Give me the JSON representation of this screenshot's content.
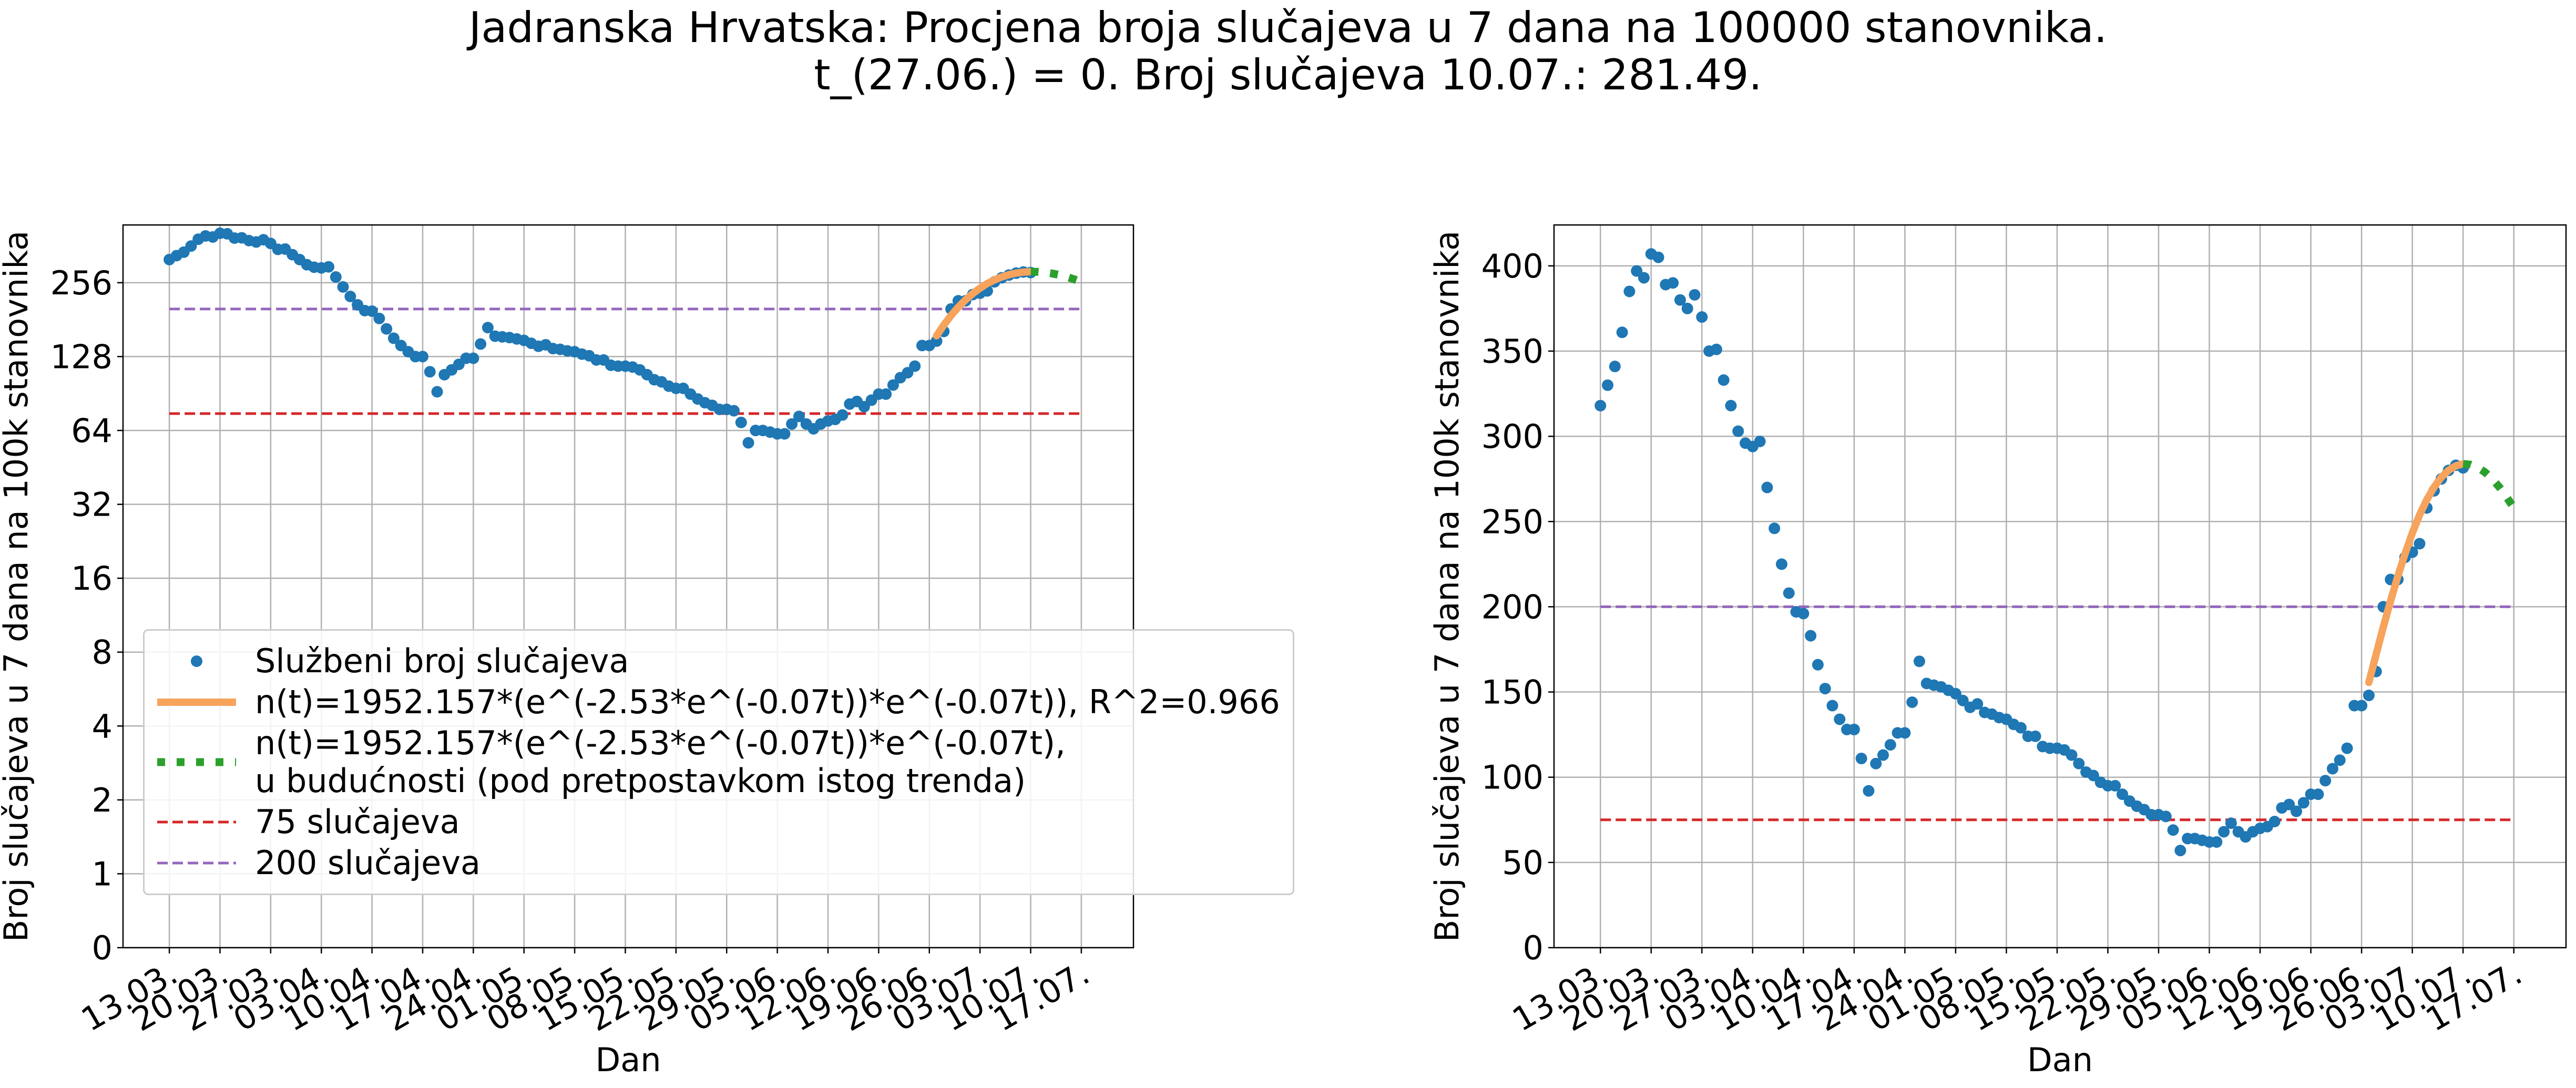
{
  "title": "Jadranska Hrvatska: Procjena broja slučajeva u 7 dana na 100000 stanovnika.\nt_(27.06.) = 0. Broj slučajeva 10.07.: 281.49.",
  "chart_data": [
    {
      "type": "line",
      "xlabel": "Dan",
      "ylabel": "Broj slučajeva u 7 dana na 100k stanovnika",
      "yscale": "symlog",
      "grid": true,
      "legend": "lower left",
      "ylim": [
        0,
        440
      ],
      "yticks": [
        0,
        1,
        2,
        4,
        8,
        16,
        32,
        64,
        128,
        256
      ],
      "categories": [
        "13.03.",
        null,
        null,
        null,
        null,
        null,
        null,
        "20.03.",
        null,
        null,
        null,
        null,
        null,
        null,
        "27.03.",
        null,
        null,
        null,
        null,
        null,
        null,
        "03.04.",
        null,
        null,
        null,
        null,
        null,
        null,
        "10.04.",
        null,
        null,
        null,
        null,
        null,
        null,
        "17.04.",
        null,
        null,
        null,
        null,
        null,
        null,
        "24.04.",
        null,
        null,
        null,
        null,
        null,
        null,
        "01.05.",
        null,
        null,
        null,
        null,
        null,
        null,
        "08.05.",
        null,
        null,
        null,
        null,
        null,
        null,
        "15.05.",
        null,
        null,
        null,
        null,
        null,
        null,
        "22.05.",
        null,
        null,
        null,
        null,
        null,
        null,
        "29.05.",
        null,
        null,
        null,
        null,
        null,
        null,
        "05.06.",
        null,
        null,
        null,
        null,
        null,
        null,
        "12.06.",
        null,
        null,
        null,
        null,
        null,
        null,
        "19.06.",
        null,
        null,
        null,
        null,
        null,
        null,
        "26.06.",
        null,
        null,
        null,
        null,
        null,
        null,
        "03.07.",
        null,
        null,
        null,
        null,
        null,
        null,
        "10.07.",
        null,
        null,
        null,
        null,
        null,
        null,
        "17.07."
      ],
      "series": [
        {
          "name": "Službeni broj slučajeva",
          "color": "#1f77b4",
          "style": "markers",
          "values": [
            318,
            330,
            341,
            361,
            385,
            397,
            393,
            407,
            405,
            389,
            390,
            380,
            375,
            383,
            370,
            350,
            351,
            333,
            318,
            303,
            296,
            294,
            297,
            270,
            246,
            225,
            208,
            197,
            196,
            183,
            166,
            152,
            142,
            134,
            128,
            128,
            111,
            92,
            108,
            113,
            119,
            126,
            126,
            144,
            168,
            155,
            154,
            153,
            151,
            149,
            145,
            141,
            143,
            138,
            137,
            135,
            134,
            131,
            129,
            124,
            124,
            118,
            117,
            117,
            116,
            113,
            108,
            103,
            101,
            97,
            95,
            95,
            90,
            86,
            83,
            81,
            78,
            78,
            77,
            69,
            57,
            64,
            64,
            63,
            62,
            62,
            68,
            73,
            68,
            65,
            68,
            70,
            71,
            74,
            82,
            84,
            80,
            85,
            90,
            90,
            98,
            105,
            110,
            117,
            142,
            142,
            148,
            162,
            200,
            216,
            216,
            229,
            232,
            237,
            258,
            268,
            275,
            280,
            283,
            281.49,
            null,
            null,
            null,
            null,
            null,
            null,
            null
          ]
        },
        {
          "name": "n(t)=1952.157*(e^(-2.53*e^(-0.07t))*e^(-0.07t)), R^2=0.966",
          "color": "#f7a35c",
          "style": "solid",
          "values": [
            null,
            null,
            null,
            null,
            null,
            null,
            null,
            null,
            null,
            null,
            null,
            null,
            null,
            null,
            null,
            null,
            null,
            null,
            null,
            null,
            null,
            null,
            null,
            null,
            null,
            null,
            null,
            null,
            null,
            null,
            null,
            null,
            null,
            null,
            null,
            null,
            null,
            null,
            null,
            null,
            null,
            null,
            null,
            null,
            null,
            null,
            null,
            null,
            null,
            null,
            null,
            null,
            null,
            null,
            null,
            null,
            null,
            null,
            null,
            null,
            null,
            null,
            null,
            null,
            null,
            null,
            null,
            null,
            null,
            null,
            null,
            null,
            null,
            null,
            null,
            null,
            null,
            null,
            null,
            null,
            null,
            null,
            null,
            null,
            null,
            null,
            null,
            null,
            null,
            null,
            null,
            null,
            null,
            null,
            null,
            null,
            null,
            null,
            null,
            null,
            null,
            null,
            null,
            null,
            null,
            null,
            155.6,
            172.0,
            188.2,
            203.5,
            217.9,
            231.2,
            243.3,
            253.9,
            262.8,
            270.2,
            276.0,
            280.1,
            282.7,
            283.8,
            null,
            null,
            null,
            null,
            null,
            null,
            null
          ]
        },
        {
          "name": "n(t)=1952.157*(e^(-2.53*e^(-0.07t))*e^(-0.07t),\nu budućnosti (pod pretpostavkom istog trenda)",
          "color": "#2ca02c",
          "style": "dotted",
          "values": [
            null,
            null,
            null,
            null,
            null,
            null,
            null,
            null,
            null,
            null,
            null,
            null,
            null,
            null,
            null,
            null,
            null,
            null,
            null,
            null,
            null,
            null,
            null,
            null,
            null,
            null,
            null,
            null,
            null,
            null,
            null,
            null,
            null,
            null,
            null,
            null,
            null,
            null,
            null,
            null,
            null,
            null,
            null,
            null,
            null,
            null,
            null,
            null,
            null,
            null,
            null,
            null,
            null,
            null,
            null,
            null,
            null,
            null,
            null,
            null,
            null,
            null,
            null,
            null,
            null,
            null,
            null,
            null,
            null,
            null,
            null,
            null,
            null,
            null,
            null,
            null,
            null,
            null,
            null,
            null,
            null,
            null,
            null,
            null,
            null,
            null,
            null,
            null,
            null,
            null,
            null,
            null,
            null,
            null,
            null,
            null,
            null,
            null,
            null,
            null,
            null,
            null,
            null,
            null,
            null,
            null,
            null,
            null,
            null,
            null,
            null,
            null,
            null,
            null,
            null,
            null,
            null,
            null,
            null,
            283.8,
            283.4,
            281.8,
            279.0,
            275.1,
            270.2,
            264.4,
            258.0
          ]
        }
      ],
      "hlines": [
        {
          "name": "75 slučajeva",
          "value": 75,
          "color": "#d62728"
        },
        {
          "name": "200 slučajeva",
          "value": 200,
          "color": "#9467bd"
        }
      ]
    },
    {
      "type": "line",
      "xlabel": "Dan",
      "ylabel": "Broj slučajeva u 7 dana na 100k stanovnika",
      "yscale": "linear",
      "grid": true,
      "ylim": [
        0,
        424
      ],
      "yticks": [
        0,
        50,
        100,
        150,
        200,
        250,
        300,
        350,
        400
      ],
      "categories": [
        "13.03.",
        null,
        null,
        null,
        null,
        null,
        null,
        "20.03.",
        null,
        null,
        null,
        null,
        null,
        null,
        "27.03.",
        null,
        null,
        null,
        null,
        null,
        null,
        "03.04.",
        null,
        null,
        null,
        null,
        null,
        null,
        "10.04.",
        null,
        null,
        null,
        null,
        null,
        null,
        "17.04.",
        null,
        null,
        null,
        null,
        null,
        null,
        "24.04.",
        null,
        null,
        null,
        null,
        null,
        null,
        "01.05.",
        null,
        null,
        null,
        null,
        null,
        null,
        "08.05.",
        null,
        null,
        null,
        null,
        null,
        null,
        "15.05.",
        null,
        null,
        null,
        null,
        null,
        null,
        "22.05.",
        null,
        null,
        null,
        null,
        null,
        null,
        "29.05.",
        null,
        null,
        null,
        null,
        null,
        null,
        "05.06.",
        null,
        null,
        null,
        null,
        null,
        null,
        "12.06.",
        null,
        null,
        null,
        null,
        null,
        null,
        "19.06.",
        null,
        null,
        null,
        null,
        null,
        null,
        "26.06.",
        null,
        null,
        null,
        null,
        null,
        null,
        "03.07.",
        null,
        null,
        null,
        null,
        null,
        null,
        "10.07.",
        null,
        null,
        null,
        null,
        null,
        null,
        "17.07."
      ],
      "series": [
        {
          "color": "#1f77b4",
          "style": "markers",
          "values": [
            318,
            330,
            341,
            361,
            385,
            397,
            393,
            407,
            405,
            389,
            390,
            380,
            375,
            383,
            370,
            350,
            351,
            333,
            318,
            303,
            296,
            294,
            297,
            270,
            246,
            225,
            208,
            197,
            196,
            183,
            166,
            152,
            142,
            134,
            128,
            128,
            111,
            92,
            108,
            113,
            119,
            126,
            126,
            144,
            168,
            155,
            154,
            153,
            151,
            149,
            145,
            141,
            143,
            138,
            137,
            135,
            134,
            131,
            129,
            124,
            124,
            118,
            117,
            117,
            116,
            113,
            108,
            103,
            101,
            97,
            95,
            95,
            90,
            86,
            83,
            81,
            78,
            78,
            77,
            69,
            57,
            64,
            64,
            63,
            62,
            62,
            68,
            73,
            68,
            65,
            68,
            70,
            71,
            74,
            82,
            84,
            80,
            85,
            90,
            90,
            98,
            105,
            110,
            117,
            142,
            142,
            148,
            162,
            200,
            216,
            216,
            229,
            232,
            237,
            258,
            268,
            275,
            280,
            283,
            281.49,
            null,
            null,
            null,
            null,
            null,
            null,
            null
          ]
        },
        {
          "color": "#f7a35c",
          "style": "solid",
          "values": [
            null,
            null,
            null,
            null,
            null,
            null,
            null,
            null,
            null,
            null,
            null,
            null,
            null,
            null,
            null,
            null,
            null,
            null,
            null,
            null,
            null,
            null,
            null,
            null,
            null,
            null,
            null,
            null,
            null,
            null,
            null,
            null,
            null,
            null,
            null,
            null,
            null,
            null,
            null,
            null,
            null,
            null,
            null,
            null,
            null,
            null,
            null,
            null,
            null,
            null,
            null,
            null,
            null,
            null,
            null,
            null,
            null,
            null,
            null,
            null,
            null,
            null,
            null,
            null,
            null,
            null,
            null,
            null,
            null,
            null,
            null,
            null,
            null,
            null,
            null,
            null,
            null,
            null,
            null,
            null,
            null,
            null,
            null,
            null,
            null,
            null,
            null,
            null,
            null,
            null,
            null,
            null,
            null,
            null,
            null,
            null,
            null,
            null,
            null,
            null,
            null,
            null,
            null,
            null,
            null,
            null,
            155.6,
            172.0,
            188.2,
            203.5,
            217.9,
            231.2,
            243.3,
            253.9,
            262.8,
            270.2,
            276.0,
            280.1,
            282.7,
            283.8,
            null,
            null,
            null,
            null,
            null,
            null,
            null
          ]
        },
        {
          "color": "#2ca02c",
          "style": "dotted",
          "values": [
            null,
            null,
            null,
            null,
            null,
            null,
            null,
            null,
            null,
            null,
            null,
            null,
            null,
            null,
            null,
            null,
            null,
            null,
            null,
            null,
            null,
            null,
            null,
            null,
            null,
            null,
            null,
            null,
            null,
            null,
            null,
            null,
            null,
            null,
            null,
            null,
            null,
            null,
            null,
            null,
            null,
            null,
            null,
            null,
            null,
            null,
            null,
            null,
            null,
            null,
            null,
            null,
            null,
            null,
            null,
            null,
            null,
            null,
            null,
            null,
            null,
            null,
            null,
            null,
            null,
            null,
            null,
            null,
            null,
            null,
            null,
            null,
            null,
            null,
            null,
            null,
            null,
            null,
            null,
            null,
            null,
            null,
            null,
            null,
            null,
            null,
            null,
            null,
            null,
            null,
            null,
            null,
            null,
            null,
            null,
            null,
            null,
            null,
            null,
            null,
            null,
            null,
            null,
            null,
            null,
            null,
            null,
            null,
            null,
            null,
            null,
            null,
            null,
            null,
            null,
            null,
            null,
            null,
            null,
            283.8,
            283.4,
            281.8,
            279.0,
            275.1,
            270.2,
            264.4,
            258.0
          ]
        }
      ],
      "hlines": [
        {
          "value": 75,
          "color": "#d62728"
        },
        {
          "value": 200,
          "color": "#9467bd"
        }
      ]
    }
  ]
}
